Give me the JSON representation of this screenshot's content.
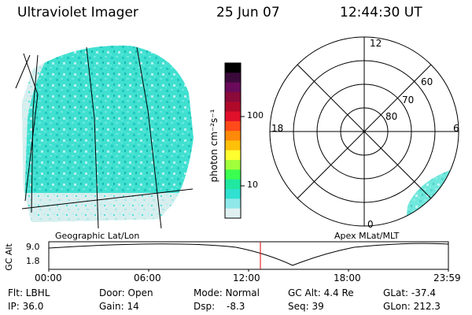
{
  "header": {
    "title": "Ultraviolet Imager",
    "date": "25 Jun 07",
    "time": "12:44:30 UT"
  },
  "colorbar": {
    "unit_label": "photon cm⁻²s⁻¹",
    "ticks": [
      "100",
      "10"
    ],
    "colors": [
      "#000000",
      "#3a0a3a",
      "#6a0a5a",
      "#8a0a3a",
      "#b00a2a",
      "#e0102a",
      "#ff4a1a",
      "#ff8a0a",
      "#ffc00a",
      "#ffff30",
      "#a0ff3a",
      "#3aff50",
      "#20e8a0",
      "#30e0d0",
      "#90e8e8",
      "#e0f0f0"
    ]
  },
  "polar_plot": {
    "hour_labels": [
      "12",
      "18",
      "6",
      "0"
    ],
    "lat_labels": [
      "60",
      "70",
      "80"
    ]
  },
  "left_image_label": "Geographic Lat/Lon",
  "right_image_label": "Apex MLat/MLT",
  "timeline": {
    "axis_label": "GC Alt",
    "y_labels": [
      "9.0",
      "1.8"
    ],
    "x_labels": [
      "00:00",
      "06:00",
      "12:00",
      "18:00",
      "23:59"
    ],
    "marker_time": "12:44:30",
    "marker_color": "#e00000"
  },
  "info": {
    "flt": "Flt: LBHL",
    "ip": "IP: 36.0",
    "door": "Door: Open",
    "gain": "Gain: 14",
    "mode": "Mode: Normal",
    "dsp_label": "Dsp:",
    "dsp_value": "-8.3",
    "gc_alt": "GC Alt: 4.4 Re",
    "seq": "Seq: 39",
    "glat": "GLat: -37.4",
    "glon": "GLon: 212.3"
  }
}
